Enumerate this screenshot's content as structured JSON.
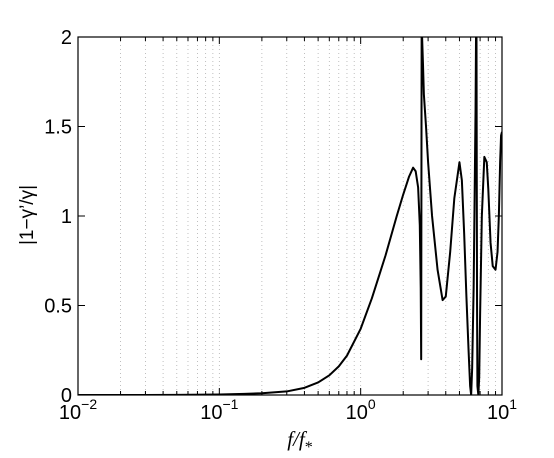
{
  "chart_data": {
    "type": "line",
    "title": "",
    "xlabel": "f/f",
    "xlabel_subscript": "*",
    "ylabel": "|1−γ’/γ|",
    "xscale": "log",
    "xlim": [
      0.01,
      10
    ],
    "ylim": [
      0,
      2
    ],
    "grid": "vertical-minor-dotted",
    "x_ticks": [
      {
        "base": "10",
        "exp": "−2"
      },
      {
        "base": "10",
        "exp": "−1"
      },
      {
        "base": "10",
        "exp": "0"
      },
      {
        "base": "10",
        "exp": "1"
      }
    ],
    "y_ticks": [
      "0",
      "0.5",
      "1",
      "1.5",
      "2"
    ],
    "y_tick_values": [
      0,
      0.5,
      1,
      1.5,
      2
    ],
    "line_color": "#000000",
    "series": [
      {
        "x": [
          0.01,
          0.03,
          0.05,
          0.1,
          0.15,
          0.2,
          0.3,
          0.4,
          0.5,
          0.6,
          0.7,
          0.8,
          1.0,
          1.2,
          1.5,
          1.8,
          2.0,
          2.2,
          2.35,
          2.45,
          2.55,
          2.62,
          2.66,
          2.68,
          2.7,
          2.72,
          2.76,
          2.8,
          2.9,
          3.0,
          3.2,
          3.5,
          3.8,
          4.0,
          4.3,
          4.6,
          5.0,
          5.2,
          5.4,
          5.6,
          5.8,
          5.95,
          6.05,
          6.15,
          6.3,
          6.4,
          6.5,
          6.55,
          6.6,
          6.63,
          6.66,
          6.7,
          6.8,
          6.9,
          7.0,
          7.2,
          7.5,
          7.8,
          8.0,
          8.3,
          8.6,
          9.0,
          9.3,
          9.5,
          9.7,
          9.85,
          10.0
        ],
        "y": [
          0,
          0,
          0.001,
          0.003,
          0.006,
          0.01,
          0.02,
          0.04,
          0.07,
          0.11,
          0.16,
          0.22,
          0.37,
          0.54,
          0.78,
          1.0,
          1.12,
          1.22,
          1.27,
          1.25,
          1.16,
          0.95,
          0.6,
          0.2,
          2.0,
          2.0,
          1.85,
          1.68,
          1.5,
          1.3,
          1.0,
          0.7,
          0.53,
          0.55,
          0.8,
          1.1,
          1.3,
          1.2,
          0.9,
          0.55,
          0.25,
          0.05,
          0.0,
          0.15,
          0.6,
          1.1,
          1.6,
          2.0,
          2.0,
          1.2,
          0.5,
          0.05,
          0.0,
          0.1,
          0.45,
          1.0,
          1.33,
          1.3,
          1.15,
          0.85,
          0.72,
          0.7,
          0.8,
          1.0,
          1.3,
          1.45,
          1.47
        ]
      }
    ]
  }
}
